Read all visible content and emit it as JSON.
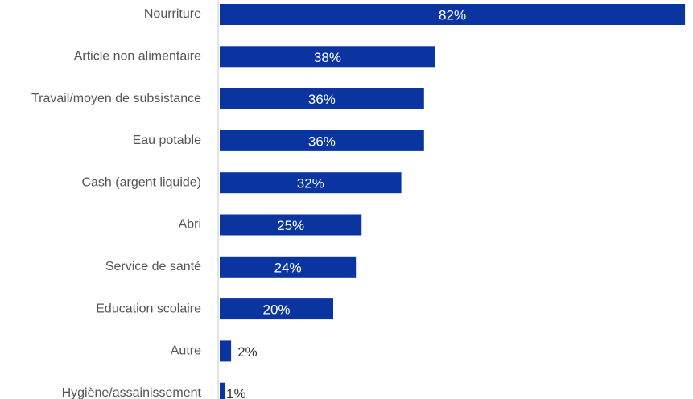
{
  "chart_data": {
    "type": "bar",
    "orientation": "horizontal",
    "categories": [
      "Nourriture",
      "Article non alimentaire",
      "Travail/moyen de subsistance",
      "Eau potable",
      "Cash (argent liquide)",
      "Abri",
      "Service de santé",
      "Education scolaire",
      "Autre",
      "Hygiène/assainissement"
    ],
    "values": [
      82,
      38,
      36,
      36,
      32,
      25,
      24,
      20,
      2,
      1
    ],
    "value_labels": [
      "82%",
      "38%",
      "36%",
      "36%",
      "32%",
      "25%",
      "24%",
      "20%",
      "2%",
      "1%"
    ],
    "unit": "%",
    "xlim": [
      0,
      100
    ],
    "grid": false,
    "legend": "none"
  },
  "colors": {
    "bar": "#0a35a0",
    "axis": "#c8c8c8",
    "label_inside": "#ffffff",
    "label_outside": "#333333",
    "category_text": "#555555"
  }
}
